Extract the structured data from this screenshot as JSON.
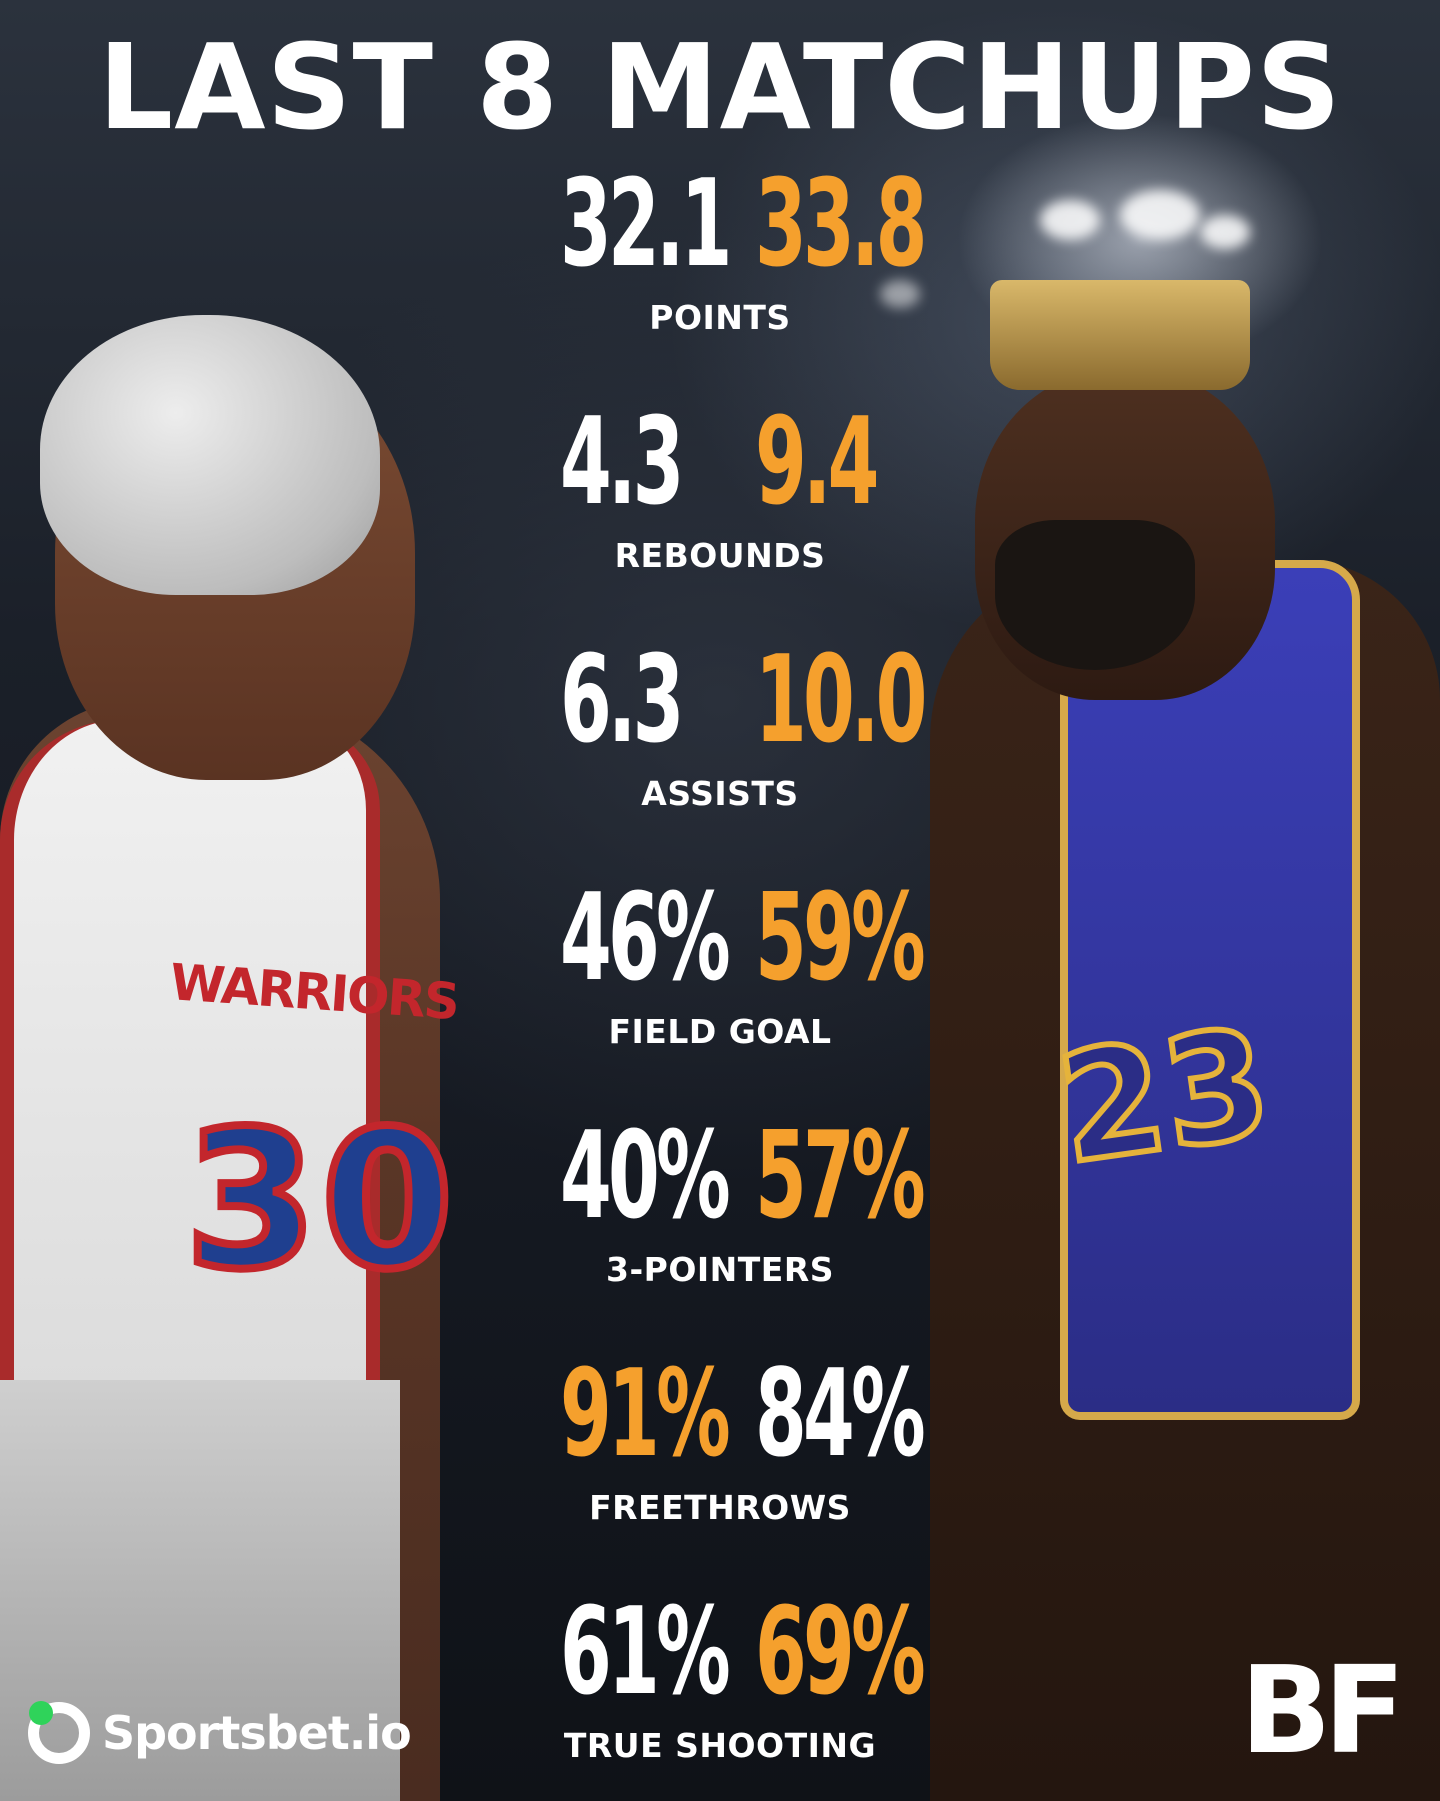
{
  "title": "LAST 8 MATCHUPS",
  "players": {
    "left": {
      "jersey_text": "WARRIORS",
      "jersey_number": "30"
    },
    "right": {
      "jersey_number": "23"
    }
  },
  "colors": {
    "left_value": "#ffffff",
    "right_value": "#f5a02d",
    "highlight": "#f5a02d",
    "label": "#ffffff"
  },
  "stats": [
    {
      "label": "POINTS",
      "left": "32.1",
      "right": "33.8",
      "left_color": "white",
      "right_color": "orange"
    },
    {
      "label": "REBOUNDS",
      "left": "4.3",
      "right": "9.4",
      "left_color": "white",
      "right_color": "orange"
    },
    {
      "label": "ASSISTS",
      "left": "6.3",
      "right": "10.0",
      "left_color": "white",
      "right_color": "orange"
    },
    {
      "label": "FIELD GOAL",
      "left": "46%",
      "right": "59%",
      "left_color": "white",
      "right_color": "orange"
    },
    {
      "label": "3-POINTERS",
      "left": "40%",
      "right": "57%",
      "left_color": "white",
      "right_color": "orange"
    },
    {
      "label": "FREETHROWS",
      "left": "91%",
      "right": "84%",
      "left_color": "orange",
      "right_color": "white"
    },
    {
      "label": "TRUE SHOOTING",
      "left": "61%",
      "right": "69%",
      "left_color": "white",
      "right_color": "orange"
    }
  ],
  "logos": {
    "sponsor": "Sportsbet.io",
    "brand": "BF"
  }
}
